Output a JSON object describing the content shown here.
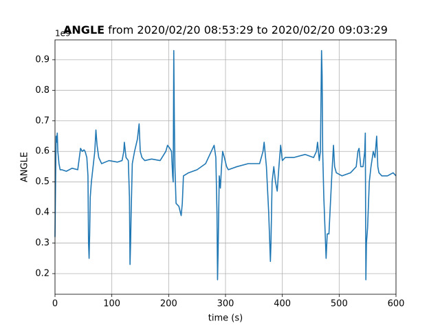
{
  "chart_data": {
    "type": "line",
    "title_bold": "ANGLE",
    "title": "from 2020/02/20 08:53:29 to 2020/02/20 09:03:29",
    "offset_text": "1e9",
    "xlabel": "time (s)",
    "ylabel": "ANGLE",
    "xlim": [
      0,
      600
    ],
    "ylim": [
      0.1325,
      0.965
    ],
    "xticks": [
      0,
      100,
      200,
      300,
      400,
      500,
      600
    ],
    "yticks": [
      0.2,
      0.3,
      0.4,
      0.5,
      0.6,
      0.7,
      0.8,
      0.9
    ],
    "grid": true,
    "x": [
      0,
      1,
      2,
      3,
      4,
      5,
      7,
      9,
      12,
      20,
      30,
      40,
      45,
      48,
      51,
      53,
      56,
      58,
      59,
      60,
      61,
      62,
      64,
      67,
      70,
      72,
      74,
      77,
      82,
      95,
      110,
      118,
      121,
      122,
      125,
      129,
      131,
      132,
      133,
      134,
      136,
      140,
      145,
      148,
      150,
      153,
      158,
      170,
      185,
      195,
      198,
      202,
      205,
      207,
      208,
      209,
      210,
      211,
      213,
      218,
      222,
      224,
      226,
      235,
      250,
      265,
      275,
      280,
      283,
      285,
      286,
      287,
      289,
      291,
      293,
      295,
      298,
      302,
      305,
      320,
      340,
      360,
      366,
      368,
      372,
      376,
      379,
      380,
      382,
      385,
      388,
      391,
      394,
      397,
      400,
      405,
      420,
      440,
      455,
      460,
      462,
      465,
      467,
      469,
      470,
      471,
      473,
      475,
      477,
      479,
      482,
      487,
      490,
      492,
      495,
      505,
      520,
      530,
      533,
      535,
      538,
      542,
      545,
      546,
      547,
      548,
      550,
      553,
      556,
      560,
      563,
      566,
      568,
      570,
      575,
      585,
      595,
      600
    ],
    "series": [
      {
        "name": "ANGLE",
        "color": "#1f77b4",
        "values": [
          0.32,
          0.5,
          0.65,
          0.63,
          0.66,
          0.6,
          0.56,
          0.54,
          0.54,
          0.535,
          0.545,
          0.54,
          0.61,
          0.6,
          0.605,
          0.6,
          0.58,
          0.52,
          0.3,
          0.25,
          0.33,
          0.45,
          0.5,
          0.55,
          0.6,
          0.67,
          0.62,
          0.58,
          0.56,
          0.57,
          0.565,
          0.57,
          0.6,
          0.63,
          0.58,
          0.57,
          0.45,
          0.23,
          0.3,
          0.4,
          0.56,
          0.6,
          0.64,
          0.69,
          0.6,
          0.58,
          0.57,
          0.575,
          0.57,
          0.6,
          0.62,
          0.61,
          0.6,
          0.52,
          0.5,
          0.93,
          0.7,
          0.55,
          0.43,
          0.42,
          0.39,
          0.43,
          0.52,
          0.53,
          0.54,
          0.56,
          0.6,
          0.62,
          0.58,
          0.4,
          0.18,
          0.27,
          0.52,
          0.48,
          0.55,
          0.6,
          0.58,
          0.55,
          0.54,
          0.55,
          0.56,
          0.56,
          0.6,
          0.63,
          0.55,
          0.4,
          0.24,
          0.3,
          0.5,
          0.55,
          0.5,
          0.47,
          0.55,
          0.62,
          0.57,
          0.58,
          0.58,
          0.59,
          0.58,
          0.6,
          0.63,
          0.57,
          0.6,
          0.93,
          0.85,
          0.6,
          0.45,
          0.35,
          0.25,
          0.33,
          0.33,
          0.52,
          0.62,
          0.55,
          0.53,
          0.52,
          0.53,
          0.55,
          0.6,
          0.61,
          0.55,
          0.55,
          0.6,
          0.66,
          0.18,
          0.3,
          0.35,
          0.5,
          0.55,
          0.6,
          0.58,
          0.65,
          0.55,
          0.53,
          0.52,
          0.52,
          0.53,
          0.52
        ]
      }
    ]
  }
}
